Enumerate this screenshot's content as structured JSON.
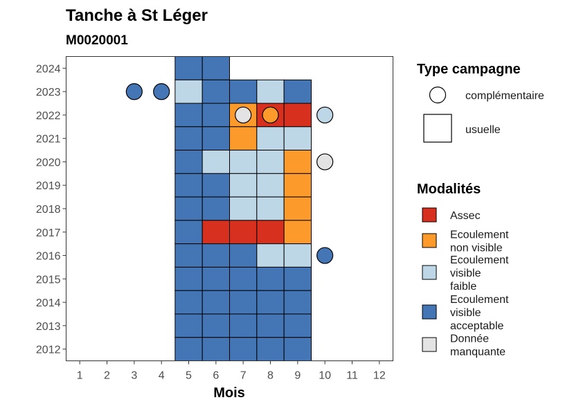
{
  "chart_data": {
    "type": "heatmap",
    "title": "Tanche à St Léger",
    "subtitle": "M0020001",
    "xlabel": "Mois",
    "ylabel": "",
    "x_ticks": [
      "1",
      "2",
      "3",
      "4",
      "5",
      "6",
      "7",
      "8",
      "9",
      "10",
      "11",
      "12"
    ],
    "y_ticks": [
      "2012",
      "2013",
      "2014",
      "2015",
      "2016",
      "2017",
      "2018",
      "2019",
      "2020",
      "2021",
      "2022",
      "2023",
      "2024"
    ],
    "xlim": [
      0.5,
      12.5
    ],
    "ylim": [
      2011.5,
      2024.5
    ],
    "grid": false,
    "legend_position": "right",
    "colors": {
      "Assec": "#d7301f",
      "Ecoulement non visible": "#fd9a2c",
      "Ecoulement visible faible": "#bdd7e7",
      "Ecoulement visible acceptable": "#4475b4",
      "Donnée manquante": "#e3e3e3"
    },
    "legend_type": {
      "title": "Type campagne",
      "items": [
        {
          "label": "complémentaire",
          "shape": "circle"
        },
        {
          "label": "usuelle",
          "shape": "square"
        }
      ]
    },
    "legend_modalites": {
      "title": "Modalités",
      "items": [
        {
          "key": "Assec",
          "lines": [
            "Assec"
          ]
        },
        {
          "key": "Ecoulement non visible",
          "lines": [
            "Ecoulement",
            "non visible"
          ]
        },
        {
          "key": "Ecoulement visible faible",
          "lines": [
            "Ecoulement",
            "visible",
            "faible"
          ]
        },
        {
          "key": "Ecoulement visible acceptable",
          "lines": [
            "Ecoulement",
            "visible",
            "acceptable"
          ]
        },
        {
          "key": "Donnée manquante",
          "lines": [
            "Donnée",
            "manquante"
          ]
        }
      ]
    },
    "usuelle": [
      {
        "year": 2024,
        "month": 5,
        "value": "Ecoulement visible acceptable"
      },
      {
        "year": 2024,
        "month": 6,
        "value": "Ecoulement visible acceptable"
      },
      {
        "year": 2023,
        "month": 5,
        "value": "Ecoulement visible faible"
      },
      {
        "year": 2023,
        "month": 6,
        "value": "Ecoulement visible acceptable"
      },
      {
        "year": 2023,
        "month": 7,
        "value": "Ecoulement visible acceptable"
      },
      {
        "year": 2023,
        "month": 8,
        "value": "Ecoulement visible faible"
      },
      {
        "year": 2023,
        "month": 9,
        "value": "Ecoulement visible acceptable"
      },
      {
        "year": 2022,
        "month": 5,
        "value": "Ecoulement visible acceptable"
      },
      {
        "year": 2022,
        "month": 6,
        "value": "Ecoulement visible acceptable"
      },
      {
        "year": 2022,
        "month": 7,
        "value": "Ecoulement non visible"
      },
      {
        "year": 2022,
        "month": 8,
        "value": "Assec"
      },
      {
        "year": 2022,
        "month": 9,
        "value": "Assec"
      },
      {
        "year": 2021,
        "month": 5,
        "value": "Ecoulement visible acceptable"
      },
      {
        "year": 2021,
        "month": 6,
        "value": "Ecoulement visible acceptable"
      },
      {
        "year": 2021,
        "month": 7,
        "value": "Ecoulement non visible"
      },
      {
        "year": 2021,
        "month": 8,
        "value": "Ecoulement visible faible"
      },
      {
        "year": 2021,
        "month": 9,
        "value": "Ecoulement visible faible"
      },
      {
        "year": 2020,
        "month": 5,
        "value": "Ecoulement visible acceptable"
      },
      {
        "year": 2020,
        "month": 6,
        "value": "Ecoulement visible faible"
      },
      {
        "year": 2020,
        "month": 7,
        "value": "Ecoulement visible faible"
      },
      {
        "year": 2020,
        "month": 8,
        "value": "Ecoulement visible faible"
      },
      {
        "year": 2020,
        "month": 9,
        "value": "Ecoulement non visible"
      },
      {
        "year": 2019,
        "month": 5,
        "value": "Ecoulement visible acceptable"
      },
      {
        "year": 2019,
        "month": 6,
        "value": "Ecoulement visible acceptable"
      },
      {
        "year": 2019,
        "month": 7,
        "value": "Ecoulement visible faible"
      },
      {
        "year": 2019,
        "month": 8,
        "value": "Ecoulement visible faible"
      },
      {
        "year": 2019,
        "month": 9,
        "value": "Ecoulement non visible"
      },
      {
        "year": 2018,
        "month": 5,
        "value": "Ecoulement visible acceptable"
      },
      {
        "year": 2018,
        "month": 6,
        "value": "Ecoulement visible acceptable"
      },
      {
        "year": 2018,
        "month": 7,
        "value": "Ecoulement visible faible"
      },
      {
        "year": 2018,
        "month": 8,
        "value": "Ecoulement visible faible"
      },
      {
        "year": 2018,
        "month": 9,
        "value": "Ecoulement non visible"
      },
      {
        "year": 2017,
        "month": 5,
        "value": "Ecoulement visible acceptable"
      },
      {
        "year": 2017,
        "month": 6,
        "value": "Assec"
      },
      {
        "year": 2017,
        "month": 7,
        "value": "Assec"
      },
      {
        "year": 2017,
        "month": 8,
        "value": "Assec"
      },
      {
        "year": 2017,
        "month": 9,
        "value": "Ecoulement non visible"
      },
      {
        "year": 2016,
        "month": 5,
        "value": "Ecoulement visible acceptable"
      },
      {
        "year": 2016,
        "month": 6,
        "value": "Ecoulement visible acceptable"
      },
      {
        "year": 2016,
        "month": 7,
        "value": "Ecoulement visible acceptable"
      },
      {
        "year": 2016,
        "month": 8,
        "value": "Ecoulement visible faible"
      },
      {
        "year": 2016,
        "month": 9,
        "value": "Ecoulement visible faible"
      },
      {
        "year": 2015,
        "month": 5,
        "value": "Ecoulement visible acceptable"
      },
      {
        "year": 2015,
        "month": 6,
        "value": "Ecoulement visible acceptable"
      },
      {
        "year": 2015,
        "month": 7,
        "value": "Ecoulement visible acceptable"
      },
      {
        "year": 2015,
        "month": 8,
        "value": "Ecoulement visible acceptable"
      },
      {
        "year": 2015,
        "month": 9,
        "value": "Ecoulement visible acceptable"
      },
      {
        "year": 2014,
        "month": 5,
        "value": "Ecoulement visible acceptable"
      },
      {
        "year": 2014,
        "month": 6,
        "value": "Ecoulement visible acceptable"
      },
      {
        "year": 2014,
        "month": 7,
        "value": "Ecoulement visible acceptable"
      },
      {
        "year": 2014,
        "month": 8,
        "value": "Ecoulement visible acceptable"
      },
      {
        "year": 2014,
        "month": 9,
        "value": "Ecoulement visible acceptable"
      },
      {
        "year": 2013,
        "month": 5,
        "value": "Ecoulement visible acceptable"
      },
      {
        "year": 2013,
        "month": 6,
        "value": "Ecoulement visible acceptable"
      },
      {
        "year": 2013,
        "month": 7,
        "value": "Ecoulement visible acceptable"
      },
      {
        "year": 2013,
        "month": 8,
        "value": "Ecoulement visible acceptable"
      },
      {
        "year": 2013,
        "month": 9,
        "value": "Ecoulement visible acceptable"
      },
      {
        "year": 2012,
        "month": 5,
        "value": "Ecoulement visible acceptable"
      },
      {
        "year": 2012,
        "month": 6,
        "value": "Ecoulement visible acceptable"
      },
      {
        "year": 2012,
        "month": 7,
        "value": "Ecoulement visible acceptable"
      },
      {
        "year": 2012,
        "month": 8,
        "value": "Ecoulement visible acceptable"
      },
      {
        "year": 2012,
        "month": 9,
        "value": "Ecoulement visible acceptable"
      }
    ],
    "complementaire": [
      {
        "year": 2023,
        "month": 3,
        "value": "Ecoulement visible acceptable"
      },
      {
        "year": 2023,
        "month": 4,
        "value": "Ecoulement visible acceptable"
      },
      {
        "year": 2022,
        "month": 7,
        "value": "Donnée manquante"
      },
      {
        "year": 2022,
        "month": 8,
        "value": "Ecoulement non visible"
      },
      {
        "year": 2022,
        "month": 10,
        "value": "Ecoulement visible faible"
      },
      {
        "year": 2020,
        "month": 10,
        "value": "Donnée manquante"
      },
      {
        "year": 2016,
        "month": 10,
        "value": "Ecoulement visible acceptable"
      }
    ]
  }
}
